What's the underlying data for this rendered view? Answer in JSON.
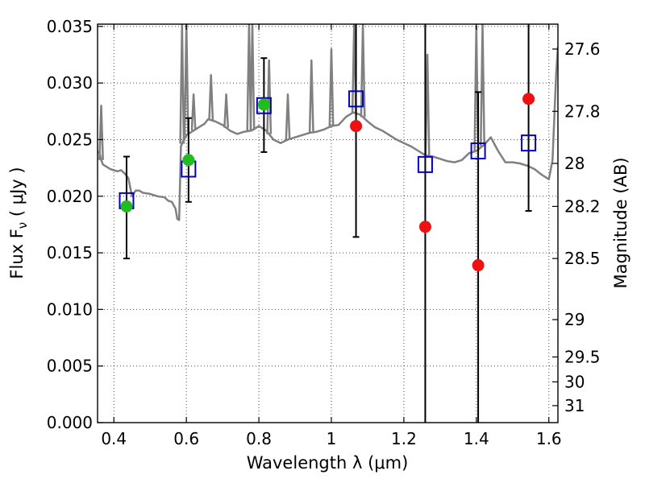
{
  "chart_data": {
    "type": "scatter",
    "title": "",
    "xlabel": "Wavelength  λ (μm)",
    "ylabel": "Flux  F",
    "ylabel_sub": "ν",
    "ylabel_unit": "  ( μJy )",
    "ylabel_right": "Magnitude (AB)",
    "xlim": [
      0.355,
      1.625
    ],
    "ylim": [
      0.0,
      0.0352
    ],
    "grid": true,
    "legend": "none",
    "x_ticks": [
      {
        "value": 0.4,
        "label": "0.4"
      },
      {
        "value": 0.6,
        "label": "0.6"
      },
      {
        "value": 0.8,
        "label": "0.8"
      },
      {
        "value": 1.0,
        "label": "1"
      },
      {
        "value": 1.2,
        "label": "1.2"
      },
      {
        "value": 1.4,
        "label": "1.4"
      },
      {
        "value": 1.6,
        "label": "1.6"
      }
    ],
    "y_ticks": [
      {
        "value": 0.0,
        "label": "0.000"
      },
      {
        "value": 0.005,
        "label": "0.005"
      },
      {
        "value": 0.01,
        "label": "0.010"
      },
      {
        "value": 0.015,
        "label": "0.015"
      },
      {
        "value": 0.02,
        "label": "0.020"
      },
      {
        "value": 0.025,
        "label": "0.025"
      },
      {
        "value": 0.03,
        "label": "0.030"
      },
      {
        "value": 0.035,
        "label": "0.035"
      }
    ],
    "mag_ticks": [
      {
        "label": "27.6",
        "flux": 0.033
      },
      {
        "label": "27.8",
        "flux": 0.0275
      },
      {
        "label": "28",
        "flux": 0.0229
      },
      {
        "label": "28.2",
        "flux": 0.0191
      },
      {
        "label": "28.5",
        "flux": 0.0145
      },
      {
        "label": "29",
        "flux": 0.0091
      },
      {
        "label": "29.5",
        "flux": 0.0058
      },
      {
        "label": "30",
        "flux": 0.0036
      },
      {
        "label": "31",
        "flux": 0.0015
      }
    ],
    "colors": {
      "model": "#808080",
      "observed_optical": "#22bb22",
      "observed_ir": "#ee1111",
      "model_photometry": "#0000cc",
      "errorbar": "#000000"
    },
    "model_spectrum": {
      "x": [
        0.355,
        0.36,
        0.365,
        0.37,
        0.38,
        0.39,
        0.4,
        0.41,
        0.42,
        0.43,
        0.44,
        0.45,
        0.46,
        0.47,
        0.48,
        0.5,
        0.52,
        0.54,
        0.55,
        0.56,
        0.57,
        0.575,
        0.58,
        0.585,
        0.59,
        0.6,
        0.62,
        0.64,
        0.65,
        0.66,
        0.68,
        0.7,
        0.72,
        0.74,
        0.76,
        0.78,
        0.8,
        0.82,
        0.84,
        0.86,
        0.88,
        0.9,
        0.92,
        0.94,
        0.96,
        0.98,
        1.0,
        1.02,
        1.04,
        1.06,
        1.08,
        1.1,
        1.12,
        1.14,
        1.16,
        1.18,
        1.2,
        1.22,
        1.24,
        1.26,
        1.28,
        1.3,
        1.32,
        1.34,
        1.36,
        1.38,
        1.4,
        1.42,
        1.44,
        1.46,
        1.48,
        1.5,
        1.52,
        1.54,
        1.56,
        1.58,
        1.6,
        1.61,
        1.62,
        1.625
      ],
      "y": [
        0.0239,
        0.0239,
        0.0232,
        0.0228,
        0.0226,
        0.0224,
        0.0223,
        0.0222,
        0.0223,
        0.022,
        0.0216,
        0.02,
        0.0205,
        0.0205,
        0.0203,
        0.0202,
        0.02,
        0.0199,
        0.0196,
        0.0195,
        0.0189,
        0.018,
        0.0179,
        0.0244,
        0.0248,
        0.0254,
        0.0258,
        0.0262,
        0.0264,
        0.0268,
        0.0266,
        0.0263,
        0.0258,
        0.0255,
        0.0257,
        0.0258,
        0.0262,
        0.0258,
        0.025,
        0.0247,
        0.025,
        0.0252,
        0.0254,
        0.0256,
        0.0257,
        0.0259,
        0.0262,
        0.0263,
        0.027,
        0.0274,
        0.0272,
        0.0266,
        0.0261,
        0.0258,
        0.0254,
        0.025,
        0.0247,
        0.0244,
        0.024,
        0.0236,
        0.0235,
        0.0233,
        0.0231,
        0.023,
        0.0232,
        0.0238,
        0.024,
        0.0245,
        0.0252,
        0.024,
        0.023,
        0.023,
        0.0229,
        0.0227,
        0.0224,
        0.0219,
        0.0215,
        0.0232,
        0.0308,
        0.0332
      ]
    },
    "emission_lines": [
      {
        "x": 0.365,
        "peak": 0.028
      },
      {
        "x": 0.588,
        "peak": 0.0352
      },
      {
        "x": 0.6,
        "peak": 0.0352
      },
      {
        "x": 0.62,
        "peak": 0.029
      },
      {
        "x": 0.668,
        "peak": 0.0307
      },
      {
        "x": 0.71,
        "peak": 0.029
      },
      {
        "x": 0.773,
        "peak": 0.0352
      },
      {
        "x": 0.782,
        "peak": 0.0352
      },
      {
        "x": 0.828,
        "peak": 0.032
      },
      {
        "x": 0.88,
        "peak": 0.029
      },
      {
        "x": 0.945,
        "peak": 0.032
      },
      {
        "x": 1.0,
        "peak": 0.033
      },
      {
        "x": 1.063,
        "peak": 0.0352
      },
      {
        "x": 1.087,
        "peak": 0.0352
      },
      {
        "x": 1.265,
        "peak": 0.0325
      },
      {
        "x": 1.4,
        "peak": 0.035
      },
      {
        "x": 1.417,
        "peak": 0.0352
      }
    ],
    "series": [
      {
        "marker": "circle",
        "color": "#22bb22",
        "points": [
          {
            "x": 0.435,
            "y": 0.0191,
            "err_low": 0.0145,
            "err_high": 0.0235
          },
          {
            "x": 0.606,
            "y": 0.0232,
            "err_low": 0.0195,
            "err_high": 0.0269
          },
          {
            "x": 0.814,
            "y": 0.0281,
            "err_low": 0.0239,
            "err_high": 0.0322
          }
        ]
      },
      {
        "marker": "circle",
        "color": "#ee1111",
        "points": [
          {
            "x": 1.068,
            "y": 0.0262,
            "err_low": 0.0164,
            "err_high": 0.0352
          },
          {
            "x": 1.259,
            "y": 0.0173,
            "err_low": 0.0,
            "err_high": 0.0352
          },
          {
            "x": 1.405,
            "y": 0.0139,
            "err_low": 0.0,
            "err_high": 0.0292
          },
          {
            "x": 1.544,
            "y": 0.0286,
            "err_low": 0.0187,
            "err_high": 0.0352
          }
        ]
      },
      {
        "marker": "open-square",
        "color": "#0000cc",
        "points": [
          {
            "x": 0.435,
            "y": 0.0196
          },
          {
            "x": 0.606,
            "y": 0.0224
          },
          {
            "x": 0.814,
            "y": 0.028
          },
          {
            "x": 1.068,
            "y": 0.0286
          },
          {
            "x": 1.259,
            "y": 0.0228
          },
          {
            "x": 1.405,
            "y": 0.024
          },
          {
            "x": 1.544,
            "y": 0.0247
          }
        ]
      }
    ]
  }
}
